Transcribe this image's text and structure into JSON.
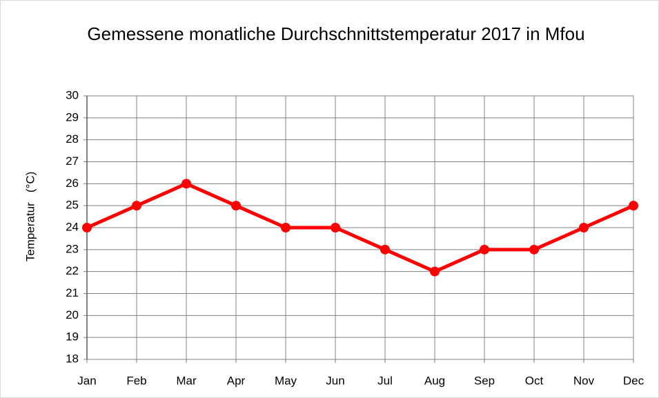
{
  "chart_data": {
    "type": "line",
    "title": "Gemessene monatliche Durchschnittstemperatur 2017 in Mfou",
    "y_label": "Temperatur   (°C)",
    "categories": [
      "Jan",
      "Feb",
      "Mar",
      "Apr",
      "May",
      "Jun",
      "Jul",
      "Aug",
      "Sep",
      "Oct",
      "Nov",
      "Dec"
    ],
    "series": [
      {
        "name": "Temperatur",
        "color": "#ff0000",
        "values": [
          24,
          25,
          26,
          25,
          24,
          24,
          23,
          22,
          23,
          23,
          24,
          25
        ]
      }
    ],
    "ylim": [
      18,
      30
    ],
    "yticks": [
      18,
      19,
      20,
      21,
      22,
      23,
      24,
      25,
      26,
      27,
      28,
      29,
      30
    ],
    "grid": true
  }
}
